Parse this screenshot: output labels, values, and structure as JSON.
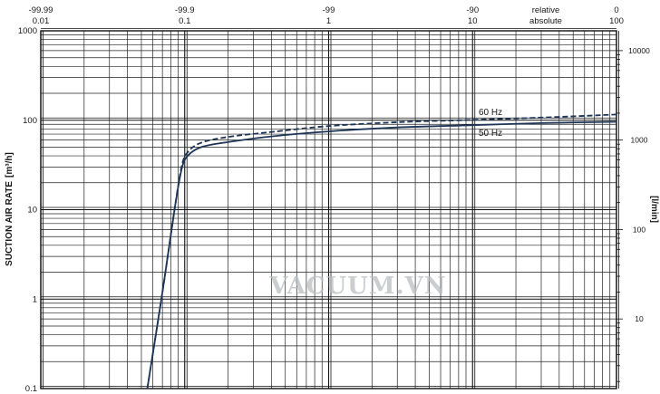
{
  "chart_data": {
    "type": "line",
    "scale": "log-log",
    "y_axis": {
      "label": "SUCTION AIR RATE",
      "unit": "[m³/h]",
      "range": [
        0.1,
        1000
      ],
      "ticks": [
        {
          "value": 0.1,
          "label": "0.1"
        },
        {
          "value": 1,
          "label": "1"
        },
        {
          "value": 10,
          "label": "10"
        },
        {
          "value": 100,
          "label": "100"
        },
        {
          "value": 1000,
          "label": "1000"
        }
      ]
    },
    "y_axis_right": {
      "unit": "[l/min]",
      "ticks": [
        {
          "value": 10,
          "label": "10"
        },
        {
          "value": 100,
          "label": "100"
        },
        {
          "value": 1000,
          "label": "1000"
        },
        {
          "value": 10000,
          "label": "10000"
        }
      ]
    },
    "x_axis_absolute": {
      "name": "absolute",
      "range": [
        0.01,
        100
      ],
      "ticks": [
        {
          "value": 0.01,
          "label": "0.01"
        },
        {
          "value": 0.1,
          "label": "0.1"
        },
        {
          "value": 1,
          "label": "1"
        },
        {
          "value": 10,
          "label": "10"
        },
        {
          "value": 100,
          "label": "100"
        }
      ]
    },
    "x_axis_relative": {
      "name": "relative",
      "ticks": [
        {
          "value": 0.01,
          "label": "-99.99"
        },
        {
          "value": 0.1,
          "label": "-99.9"
        },
        {
          "value": 1,
          "label": "-99"
        },
        {
          "value": 10,
          "label": "-90"
        },
        {
          "value": 100,
          "label": "0"
        }
      ]
    },
    "series": [
      {
        "name": "50 Hz",
        "style": "solid",
        "color": "#1d3557",
        "points": [
          [
            0.055,
            0.1
          ],
          [
            0.07,
            1.2
          ],
          [
            0.085,
            10
          ],
          [
            0.095,
            28
          ],
          [
            0.105,
            40
          ],
          [
            0.13,
            50
          ],
          [
            0.2,
            57
          ],
          [
            0.4,
            66
          ],
          [
            1,
            75
          ],
          [
            3,
            83
          ],
          [
            10,
            88
          ],
          [
            30,
            93
          ],
          [
            100,
            96
          ]
        ]
      },
      {
        "name": "60 Hz",
        "style": "dashed",
        "color": "#1d3557",
        "points": [
          [
            0.055,
            0.1
          ],
          [
            0.07,
            1.2
          ],
          [
            0.085,
            10
          ],
          [
            0.095,
            30
          ],
          [
            0.105,
            44
          ],
          [
            0.13,
            56
          ],
          [
            0.2,
            65
          ],
          [
            0.4,
            74
          ],
          [
            1,
            86
          ],
          [
            3,
            95
          ],
          [
            10,
            101
          ],
          [
            30,
            107
          ],
          [
            100,
            116
          ]
        ]
      }
    ],
    "annotations": [
      {
        "text": "60 Hz",
        "series": "60 Hz"
      },
      {
        "text": "50 Hz",
        "series": "50 Hz"
      }
    ],
    "watermark": "VACUUM.VN",
    "grid": true
  }
}
